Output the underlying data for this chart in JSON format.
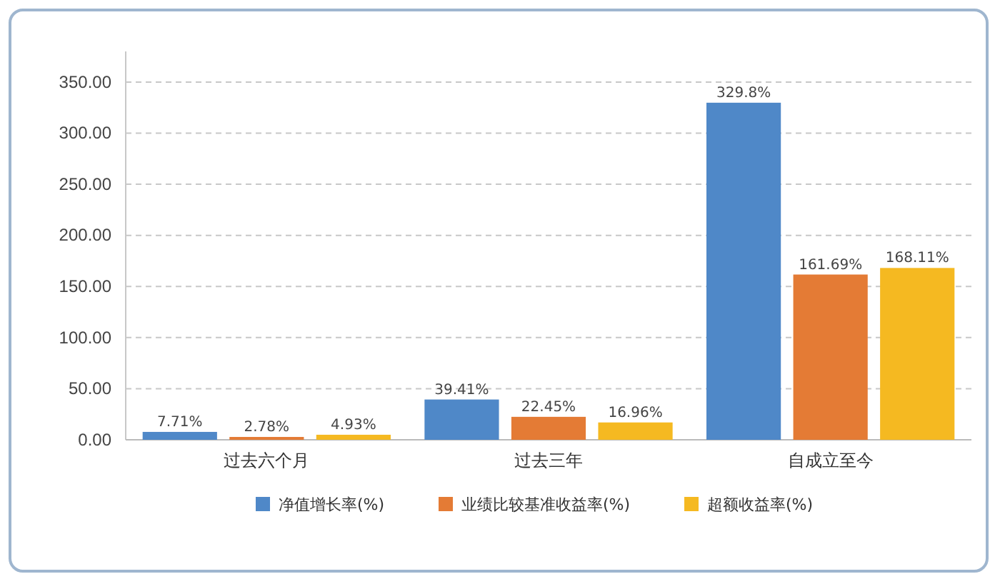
{
  "chart_data": {
    "type": "bar",
    "categories": [
      "过去六个月",
      "过去三年",
      "自成立至今"
    ],
    "series": [
      {
        "name": "净值增长率(%)",
        "color": "#4f88c8",
        "values": [
          7.71,
          39.41,
          329.8
        ],
        "value_labels": [
          "7.71%",
          "39.41%",
          "329.8%"
        ]
      },
      {
        "name": "业绩比较基准收益率(%)",
        "color": "#e47b35",
        "values": [
          2.78,
          22.45,
          161.69
        ],
        "value_labels": [
          "2.78%",
          "22.45%",
          "161.69%"
        ]
      },
      {
        "name": "超额收益率(%)",
        "color": "#f5b921",
        "values": [
          4.93,
          16.96,
          168.11
        ],
        "value_labels": [
          "4.93%",
          "16.96%",
          "168.11%"
        ]
      }
    ],
    "ylim": [
      0,
      380
    ],
    "yticks": [
      {
        "value": 0,
        "label": "0.00"
      },
      {
        "value": 50,
        "label": "50.00"
      },
      {
        "value": 100,
        "label": "100.00"
      },
      {
        "value": 150,
        "label": "150.00"
      },
      {
        "value": 200,
        "label": "200.00"
      },
      {
        "value": 250,
        "label": "250.00"
      },
      {
        "value": 300,
        "label": "300.00"
      },
      {
        "value": 350,
        "label": "350.00"
      }
    ],
    "grid": "y",
    "legend": "bottom"
  }
}
